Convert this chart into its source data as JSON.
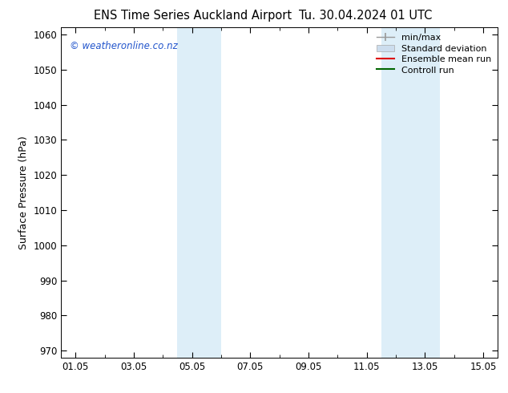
{
  "title": "ENS Time Series Auckland Airport",
  "title_date": "Tu. 30.04.2024 01 UTC",
  "ylabel": "Surface Pressure (hPa)",
  "ylim": [
    968,
    1062
  ],
  "yticks": [
    970,
    980,
    990,
    1000,
    1010,
    1020,
    1030,
    1040,
    1050,
    1060
  ],
  "xtick_labels": [
    "01.05",
    "03.05",
    "05.05",
    "07.05",
    "09.05",
    "11.05",
    "13.05",
    "15.05"
  ],
  "xtick_major_positions": [
    0,
    2,
    4,
    6,
    8,
    10,
    12,
    14
  ],
  "xmin": -0.5,
  "xmax": 14.5,
  "shaded_bands": [
    {
      "x_start": 3.5,
      "x_end": 5.0,
      "color": "#ddeef8"
    },
    {
      "x_start": 10.5,
      "x_end": 12.5,
      "color": "#ddeef8"
    }
  ],
  "watermark_text": "© weatheronline.co.nz",
  "watermark_color": "#2255cc",
  "legend_items": [
    {
      "label": "min/max",
      "type": "minmax",
      "color": "#999999"
    },
    {
      "label": "Standard deviation",
      "type": "stddev",
      "color": "#ccddee"
    },
    {
      "label": "Ensemble mean run",
      "type": "line",
      "color": "#dd0000"
    },
    {
      "label": "Controll run",
      "type": "line",
      "color": "#006600"
    }
  ],
  "background_color": "#ffffff",
  "plot_bg_color": "#ffffff",
  "title_fontsize": 10.5,
  "tick_fontsize": 8.5,
  "ylabel_fontsize": 9,
  "legend_fontsize": 8
}
